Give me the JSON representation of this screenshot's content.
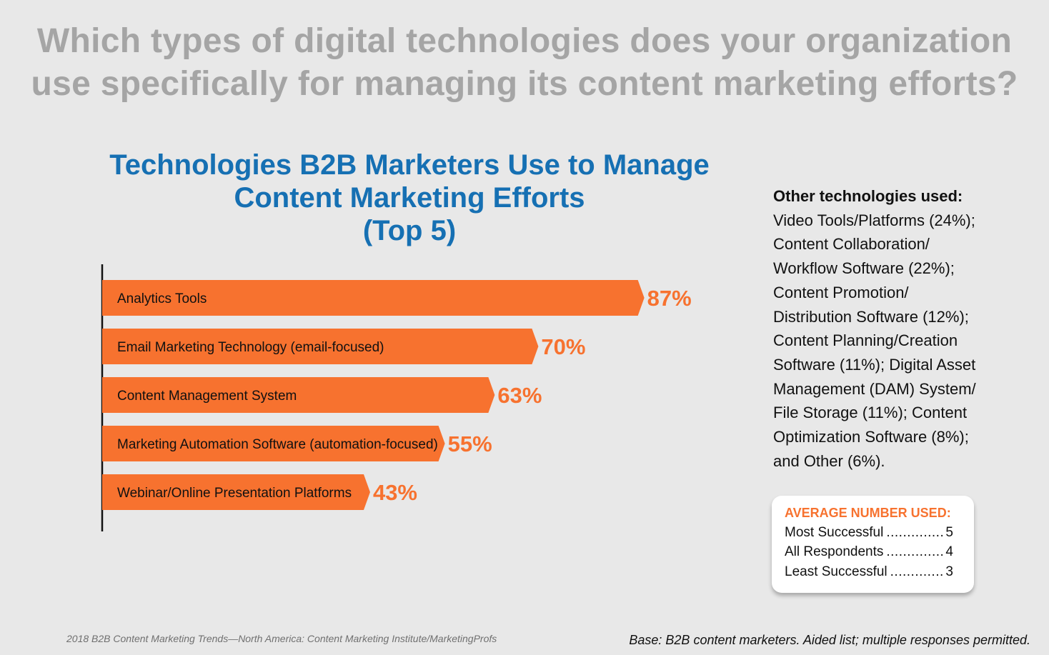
{
  "headline": {
    "line1": "Which types of digital technologies does your organization",
    "line2": "use specifically for managing its content marketing efforts?"
  },
  "chart_data": {
    "type": "bar",
    "orientation": "horizontal",
    "title_lines": [
      "Technologies B2B Marketers Use to Manage",
      "Content Marketing Efforts",
      "(Top 5)"
    ],
    "categories": [
      "Analytics Tools",
      "Email Marketing Technology (email-focused)",
      "Content Management System",
      "Marketing Automation Software (automation-focused)",
      "Webinar/Online Presentation Platforms"
    ],
    "values": [
      87,
      70,
      63,
      55,
      43
    ],
    "value_labels": [
      "87%",
      "70%",
      "63%",
      "55%",
      "43%"
    ],
    "unit": "%",
    "xlim": [
      0,
      100
    ],
    "grid": false,
    "bar_color": "#f7722f"
  },
  "other_technologies": {
    "heading": "Other technologies used:",
    "lines": [
      "Video Tools/Platforms (24%);",
      "Content Collaboration/",
      "Workflow Software (22%);",
      "Content Promotion/",
      "Distribution Software (12%);",
      "Content Planning/Creation",
      "Software (11%); Digital Asset",
      "Management (DAM) System/",
      "File Storage (11%); Content",
      "Optimization Software (8%);",
      "and Other (6%)."
    ]
  },
  "average_number": {
    "title": "AVERAGE NUMBER USED:",
    "rows": [
      {
        "label": "Most Successful",
        "value": "5"
      },
      {
        "label": "All Respondents",
        "value": "4"
      },
      {
        "label": "Least Successful",
        "value": "3"
      }
    ]
  },
  "footer": {
    "source": "2018 B2B Content Marketing Trends—North America: Content Marketing Institute/MarketingProfs",
    "base": "Base: B2B content marketers. Aided list; multiple responses permitted."
  },
  "colors": {
    "accent": "#f7722f",
    "title_blue": "#1670b3",
    "headline_gray": "#a5a5a5",
    "background": "#e8e8e8"
  }
}
